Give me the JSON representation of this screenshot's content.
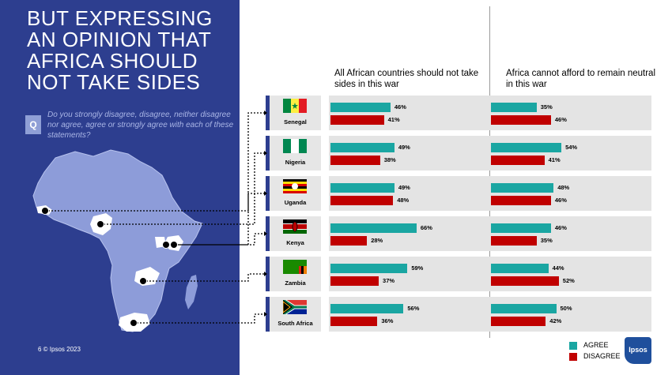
{
  "title": "BUT EXPRESSING\nAN OPINION THAT\nAFRICA SHOULD\nNOT TAKE SIDES",
  "question": {
    "badge": "Q",
    "text": "Do you strongly disagree, disagree, neither disagree nor agree, agree or strongly agree with each of these statements?"
  },
  "footer": "6   © Ipsos 2023",
  "legend": {
    "agree": "AGREE",
    "disagree": "DISAGREE"
  },
  "logo": "Ipsos",
  "colors": {
    "agree": "#1aa6a2",
    "disagree": "#c00000",
    "panel_bg": "#2d3e8f",
    "map": "#8d9cd9"
  },
  "chart_data": {
    "type": "bar",
    "orientation": "horizontal",
    "categories": [
      "Senegal",
      "Nigeria",
      "Uganda",
      "Kenya",
      "Zambia",
      "South Africa"
    ],
    "statements": [
      {
        "label": "All African countries should not take sides in this war",
        "series": [
          {
            "name": "AGREE",
            "values": [
              46,
              49,
              49,
              66,
              59,
              56
            ]
          },
          {
            "name": "DISAGREE",
            "values": [
              41,
              38,
              48,
              28,
              37,
              36
            ]
          }
        ]
      },
      {
        "label": "Africa cannot afford to remain neutral in this war",
        "series": [
          {
            "name": "AGREE",
            "values": [
              35,
              54,
              48,
              46,
              44,
              50
            ]
          },
          {
            "name": "DISAGREE",
            "values": [
              46,
              41,
              46,
              35,
              52,
              42
            ]
          }
        ]
      }
    ],
    "value_format": "{v}%"
  }
}
